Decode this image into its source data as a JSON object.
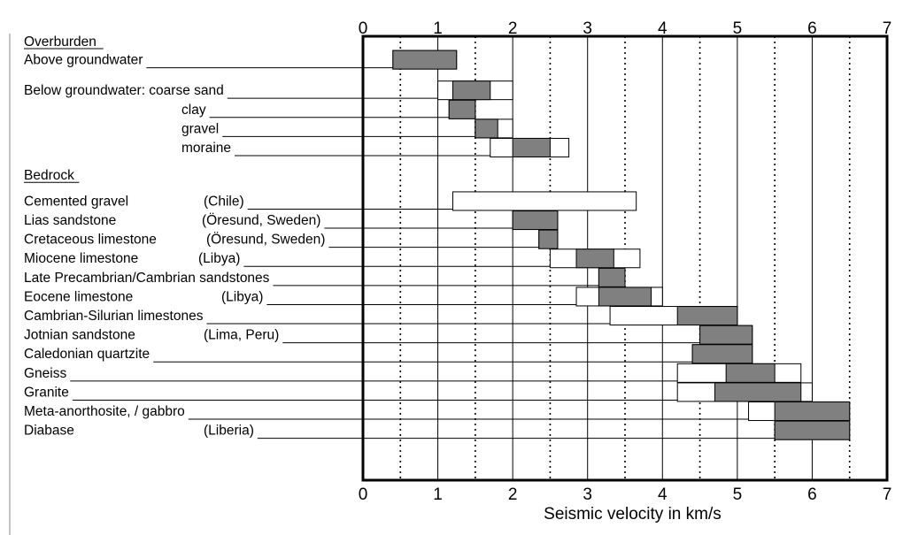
{
  "chart_data": {
    "type": "range-bar",
    "xlabel": "Seismic velocity in  km/s",
    "xlim": [
      0,
      7
    ],
    "x_ticks": [
      "0",
      "1",
      "2",
      "3",
      "4",
      "5",
      "6",
      "7"
    ],
    "grid_solid": [
      1,
      2,
      3,
      4,
      5,
      6
    ],
    "grid_dotted": [
      0.5,
      1.5,
      2.5,
      3.5,
      4.5,
      5.5,
      6.5
    ],
    "sections": [
      {
        "title": "Overburden",
        "row": 0
      },
      {
        "title": "Bedrock",
        "row": 7
      }
    ],
    "items": [
      {
        "label": "Above groundwater",
        "row": 1,
        "label_x": 27,
        "full": [
          0.4,
          1.25
        ],
        "typical": [
          0.4,
          1.25
        ]
      },
      {
        "label": "Below groundwater: coarse sand",
        "row": 2.6,
        "label_x": 27,
        "full": [
          1.0,
          2.0
        ],
        "typical": [
          1.2,
          1.7
        ]
      },
      {
        "label": "clay",
        "row": 3.6,
        "label_x": 205,
        "full": [
          1.15,
          1.5
        ],
        "typical": [
          1.15,
          1.5
        ]
      },
      {
        "label": "gravel",
        "row": 4.6,
        "label_x": 205,
        "full": [
          1.5,
          2.0
        ],
        "typical": [
          1.5,
          1.8
        ]
      },
      {
        "label": "moraine",
        "row": 5.6,
        "label_x": 205,
        "full": [
          1.7,
          2.75
        ],
        "typical": [
          2.0,
          2.5
        ]
      },
      {
        "label": "Cemented gravel",
        "note": "(Chile)",
        "note_x": 230,
        "row": 8.4,
        "label_x": 27,
        "full": [
          1.2,
          3.65
        ],
        "typical": null
      },
      {
        "label": "Lias sandstone",
        "note": "(Öresund, Sweden)",
        "note_x": 228,
        "row": 9.4,
        "label_x": 27,
        "full": [
          2.0,
          2.6
        ],
        "typical": [
          2.0,
          2.6
        ]
      },
      {
        "label": "Cretaceous limestone",
        "note": "(Öresund, Sweden)",
        "note_x": 233,
        "row": 10.4,
        "label_x": 27,
        "full": [
          2.35,
          2.6
        ],
        "typical": [
          2.35,
          2.6
        ]
      },
      {
        "label": "Miocene limestone",
        "note": "(Libya)",
        "note_x": 224,
        "row": 11.4,
        "label_x": 27,
        "full": [
          2.5,
          3.7
        ],
        "typical": [
          2.85,
          3.35
        ]
      },
      {
        "label": "Late Precambrian/Cambrian sandstones",
        "row": 12.4,
        "label_x": 27,
        "full": [
          3.15,
          3.5
        ],
        "typical": [
          3.15,
          3.5
        ]
      },
      {
        "label": "Eocene limestone",
        "note": "(Libya)",
        "note_x": 250,
        "row": 13.4,
        "label_x": 27,
        "full": [
          2.85,
          4.0
        ],
        "typical": [
          3.15,
          3.85
        ]
      },
      {
        "label": "Cambrian-Silurian limestones",
        "row": 14.4,
        "label_x": 27,
        "full": [
          3.3,
          5.0
        ],
        "typical": [
          4.2,
          5.0
        ]
      },
      {
        "label": "Jotnian sandstone",
        "note": "(Lima, Peru)",
        "note_x": 230,
        "row": 15.4,
        "label_x": 27,
        "full": [
          4.5,
          5.2
        ],
        "typical": [
          4.5,
          5.2
        ]
      },
      {
        "label": "Caledonian quartzite",
        "row": 16.4,
        "label_x": 27,
        "full": [
          4.4,
          5.2
        ],
        "typical": [
          4.4,
          5.2
        ]
      },
      {
        "label": "Gneiss",
        "row": 17.4,
        "label_x": 27,
        "full": [
          4.2,
          5.85
        ],
        "typical": [
          4.85,
          5.5
        ]
      },
      {
        "label": "Granite",
        "row": 18.4,
        "label_x": 27,
        "full": [
          4.2,
          6.0
        ],
        "typical": [
          4.7,
          5.85
        ]
      },
      {
        "label": "Meta-anorthosite, / gabbro",
        "row": 19.4,
        "label_x": 27,
        "full": [
          5.15,
          6.5
        ],
        "typical": [
          5.5,
          6.5
        ]
      },
      {
        "label": "Diabase",
        "note": "(Liberia)",
        "note_x": 230,
        "row": 20.4,
        "label_x": 27,
        "full": [
          5.5,
          6.5
        ],
        "typical": [
          5.5,
          6.5
        ]
      }
    ],
    "colors": {
      "typical": "#808080",
      "full": "#ffffff",
      "grid": "#000000",
      "frame": "#000000"
    }
  }
}
